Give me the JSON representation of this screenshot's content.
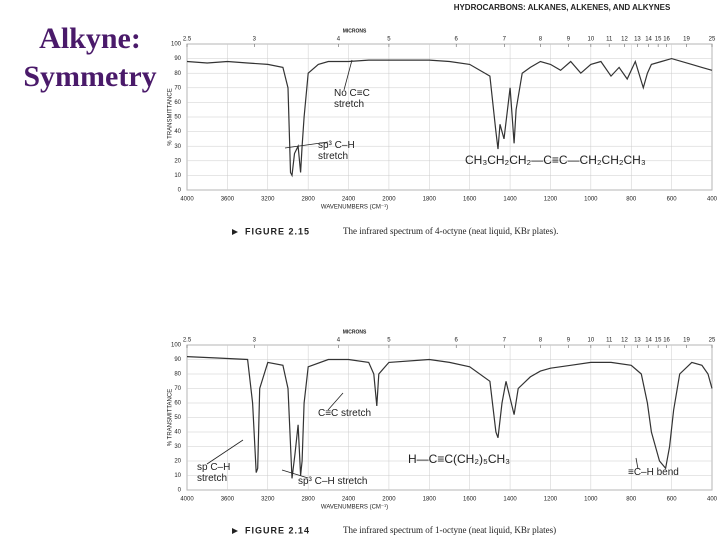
{
  "slide_title": "Alkyne: Symmetry",
  "page_header": "HYDROCARBONS: ALKANES, ALKENES, AND ALKYNES",
  "chart_data": [
    {
      "type": "line",
      "caption_label": "FIGURE 2.15",
      "caption": "The infrared spectrum of 4-octyne (neat liquid, KBr plates).",
      "x_label": "WAVENUMBERS (CM⁻¹)",
      "y_label": "% TRANSMITTANCE",
      "top_axis_label": "MICRONS",
      "top_ticks": [
        2.5,
        3,
        4,
        5,
        6,
        7,
        8,
        9,
        10,
        11,
        12,
        13,
        14,
        15,
        16,
        19,
        25
      ],
      "xlim": [
        4000,
        400
      ],
      "xticks": [
        4000,
        3600,
        3200,
        2800,
        2400,
        2000,
        1800,
        1600,
        1400,
        1200,
        1000,
        800,
        600,
        400
      ],
      "ylim": [
        0,
        100
      ],
      "yticks": [
        0,
        10,
        20,
        30,
        40,
        50,
        60,
        70,
        80,
        90,
        100
      ],
      "grid": true,
      "color": "#333333",
      "x": [
        4000,
        3800,
        3600,
        3400,
        3200,
        3050,
        3000,
        2975,
        2960,
        2935,
        2900,
        2875,
        2860,
        2840,
        2800,
        2700,
        2600,
        2400,
        2200,
        2000,
        1800,
        1700,
        1600,
        1500,
        1470,
        1460,
        1450,
        1430,
        1400,
        1380,
        1370,
        1340,
        1300,
        1250,
        1200,
        1150,
        1100,
        1050,
        1000,
        950,
        900,
        860,
        820,
        780,
        740,
        720,
        700,
        650,
        600,
        500,
        450,
        400
      ],
      "values": [
        88,
        87,
        88,
        87,
        86,
        84,
        70,
        12,
        10,
        25,
        30,
        12,
        30,
        50,
        80,
        86,
        88,
        88,
        89,
        89,
        89,
        88,
        86,
        78,
        40,
        28,
        45,
        35,
        70,
        32,
        55,
        80,
        84,
        88,
        86,
        82,
        88,
        80,
        86,
        88,
        78,
        84,
        76,
        88,
        70,
        80,
        86,
        88,
        90,
        86,
        84,
        82
      ],
      "annotations": [
        "No C≡C stretch",
        "sp³ C–H stretch",
        "CH₃CH₂CH₂—C≡C—CH₂CH₂CH₃"
      ]
    },
    {
      "type": "line",
      "caption_label": "FIGURE 2.14",
      "caption": "The infrared spectrum of 1-octyne (neat liquid, KBr plates)",
      "x_label": "WAVENUMBERS (CM⁻¹)",
      "y_label": "% TRANSMITTANCE",
      "top_axis_label": "MICRONS",
      "top_ticks": [
        2.5,
        3,
        4,
        5,
        6,
        7,
        8,
        9,
        10,
        11,
        12,
        13,
        14,
        15,
        16,
        19,
        25
      ],
      "xlim": [
        4000,
        400
      ],
      "xticks": [
        4000,
        3600,
        3200,
        2800,
        2400,
        2000,
        1800,
        1600,
        1400,
        1200,
        1000,
        800,
        600,
        400
      ],
      "ylim": [
        0,
        100
      ],
      "yticks": [
        0,
        10,
        20,
        30,
        40,
        50,
        60,
        70,
        80,
        90,
        100
      ],
      "grid": true,
      "color": "#333333",
      "x": [
        4000,
        3700,
        3400,
        3350,
        3315,
        3300,
        3280,
        3200,
        3050,
        3000,
        2960,
        2930,
        2900,
        2875,
        2860,
        2840,
        2800,
        2600,
        2400,
        2200,
        2150,
        2120,
        2100,
        2000,
        1800,
        1700,
        1600,
        1500,
        1470,
        1460,
        1440,
        1420,
        1380,
        1360,
        1300,
        1250,
        1200,
        1100,
        1000,
        900,
        800,
        750,
        720,
        700,
        660,
        630,
        610,
        590,
        560,
        500,
        450,
        420,
        400
      ],
      "values": [
        92,
        91,
        90,
        60,
        12,
        15,
        70,
        88,
        86,
        70,
        8,
        25,
        45,
        10,
        20,
        60,
        85,
        90,
        90,
        88,
        80,
        58,
        80,
        88,
        90,
        88,
        85,
        75,
        40,
        36,
        60,
        75,
        52,
        70,
        78,
        82,
        84,
        86,
        88,
        88,
        86,
        80,
        60,
        40,
        20,
        15,
        30,
        55,
        80,
        88,
        86,
        80,
        70
      ],
      "annotations": [
        "C≡C stretch",
        "H—C≡C(CH₂)₅CH₃",
        "sp C–H stretch",
        "sp³ C–H stretch",
        "≡C–H bend"
      ]
    }
  ]
}
